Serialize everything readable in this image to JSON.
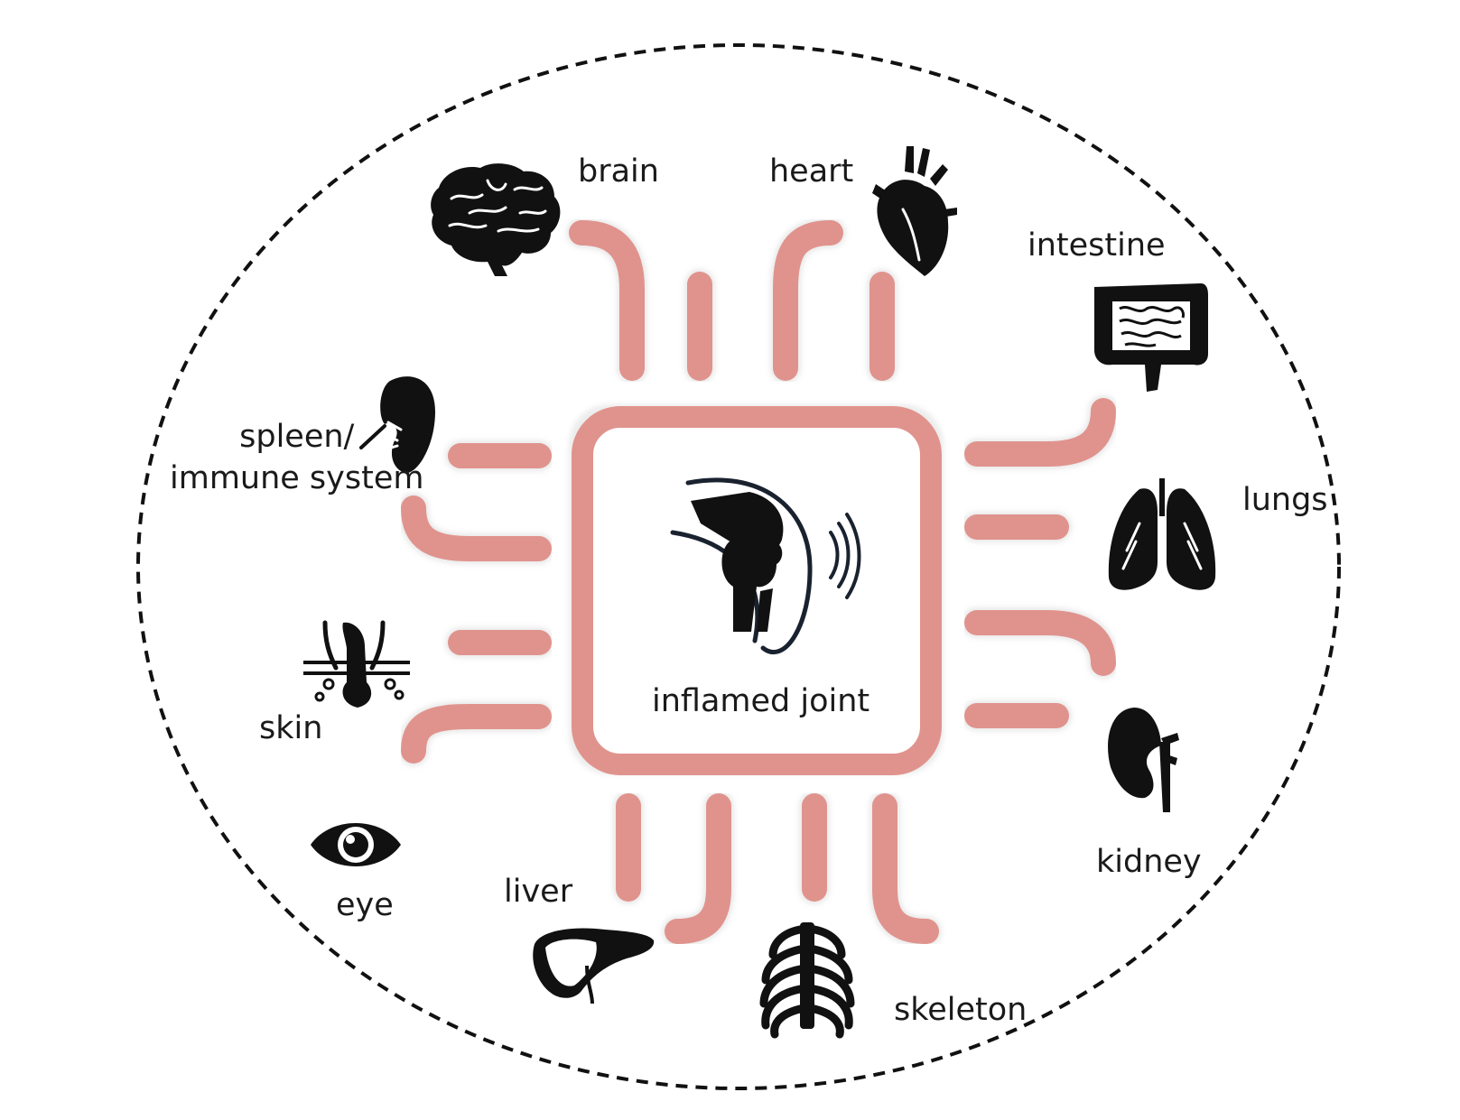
{
  "diagram": {
    "center_label": "inflamed joint",
    "organs": [
      {
        "id": "brain",
        "label": "brain",
        "icon": "brain-icon"
      },
      {
        "id": "heart",
        "label": "heart",
        "icon": "heart-icon"
      },
      {
        "id": "intestine",
        "label": "intestine",
        "icon": "intestine-icon"
      },
      {
        "id": "lungs",
        "label": "lungs",
        "icon": "lungs-icon"
      },
      {
        "id": "kidney",
        "label": "kidney",
        "icon": "kidney-icon"
      },
      {
        "id": "skeleton",
        "label": "skeleton",
        "icon": "ribcage-icon"
      },
      {
        "id": "liver",
        "label": "liver",
        "icon": "liver-icon"
      },
      {
        "id": "eye",
        "label": "eye",
        "icon": "eye-icon"
      },
      {
        "id": "skin",
        "label": "skin",
        "icon": "skin-hair-icon"
      },
      {
        "id": "spleen",
        "label": "spleen/\nimmune system",
        "icon": "spleen-icon"
      }
    ],
    "colors": {
      "connector": "#e0938d",
      "icon": "#111111",
      "border": "#111111"
    }
  }
}
